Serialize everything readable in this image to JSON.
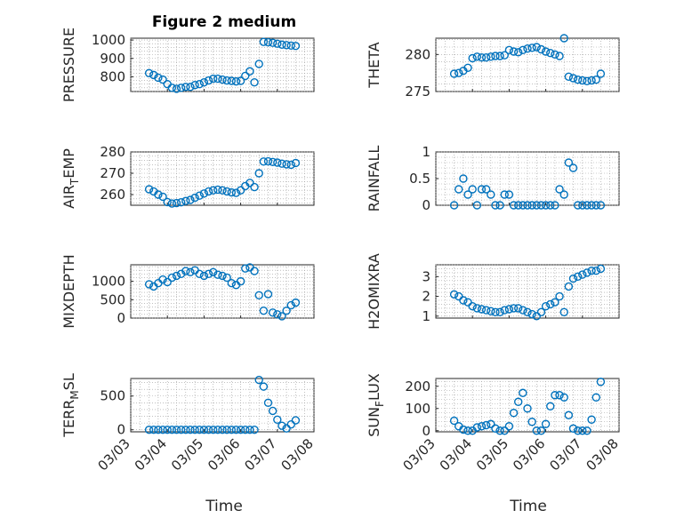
{
  "figure": {
    "title": "Figure 2 medium",
    "xlabel": "Time",
    "marker_color": "#0072BD",
    "date_ticks": [
      "03/03",
      "03/04",
      "03/05",
      "03/06",
      "03/07",
      "03/08"
    ]
  },
  "chart_data": [
    {
      "type": "scatter",
      "name": "PRESSURE",
      "ylabel": "PRESSURE",
      "ylabel_sub": "",
      "ylim": [
        720,
        1010
      ],
      "yticks": [
        800,
        900,
        1000
      ],
      "title": "Figure 2 medium",
      "x": [
        "03/03 12:00",
        "03/03 15:00",
        "03/03 18:00",
        "03/03 21:00",
        "03/04 00:00",
        "03/04 03:00",
        "03/04 06:00",
        "03/04 09:00",
        "03/04 12:00",
        "03/04 15:00",
        "03/04 18:00",
        "03/04 21:00",
        "03/05 00:00",
        "03/05 03:00",
        "03/05 06:00",
        "03/05 09:00",
        "03/05 12:00",
        "03/05 15:00",
        "03/05 18:00",
        "03/05 21:00",
        "03/06 00:00",
        "03/06 03:00",
        "03/06 06:00",
        "03/06 09:00",
        "03/06 12:00",
        "03/06 15:00",
        "03/06 18:00",
        "03/06 21:00",
        "03/07 00:00",
        "03/07 03:00",
        "03/07 06:00",
        "03/07 09:00",
        "03/07 12:00"
      ],
      "y": [
        820,
        810,
        795,
        785,
        760,
        740,
        735,
        740,
        745,
        745,
        755,
        760,
        770,
        780,
        790,
        790,
        785,
        780,
        778,
        775,
        778,
        805,
        830,
        770,
        870,
        990,
        988,
        985,
        980,
        975,
        972,
        970,
        968
      ]
    },
    {
      "type": "scatter",
      "name": "THETA",
      "ylabel": "THETA",
      "ylabel_sub": "",
      "ylim": [
        275,
        282.2
      ],
      "yticks": [
        275,
        280
      ],
      "x": [
        "03/03 12:00",
        "03/03 15:00",
        "03/03 18:00",
        "03/03 21:00",
        "03/04 00:00",
        "03/04 03:00",
        "03/04 06:00",
        "03/04 09:00",
        "03/04 12:00",
        "03/04 15:00",
        "03/04 18:00",
        "03/04 21:00",
        "03/05 00:00",
        "03/05 03:00",
        "03/05 06:00",
        "03/05 09:00",
        "03/05 12:00",
        "03/05 15:00",
        "03/05 18:00",
        "03/05 21:00",
        "03/06 00:00",
        "03/06 03:00",
        "03/06 06:00",
        "03/06 09:00",
        "03/06 12:00",
        "03/06 15:00",
        "03/06 18:00",
        "03/06 21:00",
        "03/07 00:00",
        "03/07 03:00",
        "03/07 06:00",
        "03/07 09:00",
        "03/07 12:00"
      ],
      "y": [
        277.4,
        277.5,
        277.8,
        278.2,
        279.5,
        279.7,
        279.6,
        279.6,
        279.7,
        279.8,
        279.8,
        279.9,
        280.6,
        280.4,
        280.3,
        280.6,
        280.8,
        280.9,
        281.0,
        280.7,
        280.4,
        280.2,
        280.0,
        279.8,
        282.2,
        277.0,
        276.8,
        276.6,
        276.5,
        276.4,
        276.5,
        276.6,
        277.4
      ]
    },
    {
      "type": "scatter",
      "name": "AIR_TEMP",
      "ylabel": "AIR",
      "ylabel_sub": "T",
      "ylabel_after": "EMP",
      "ylim": [
        255,
        280
      ],
      "yticks": [
        260,
        270,
        280
      ],
      "x": [
        "03/03 12:00",
        "03/03 15:00",
        "03/03 18:00",
        "03/03 21:00",
        "03/04 00:00",
        "03/04 03:00",
        "03/04 06:00",
        "03/04 09:00",
        "03/04 12:00",
        "03/04 15:00",
        "03/04 18:00",
        "03/04 21:00",
        "03/05 00:00",
        "03/05 03:00",
        "03/05 06:00",
        "03/05 09:00",
        "03/05 12:00",
        "03/05 15:00",
        "03/05 18:00",
        "03/05 21:00",
        "03/06 00:00",
        "03/06 03:00",
        "03/06 06:00",
        "03/06 09:00",
        "03/06 12:00",
        "03/06 15:00",
        "03/06 18:00",
        "03/06 21:00",
        "03/07 00:00",
        "03/07 03:00",
        "03/07 06:00",
        "03/07 09:00",
        "03/07 12:00"
      ],
      "y": [
        262.5,
        261.5,
        260.0,
        259.0,
        256.5,
        255.8,
        256.0,
        256.4,
        257.0,
        257.5,
        258.5,
        259.5,
        260.5,
        261.5,
        262.0,
        262.3,
        262.0,
        261.5,
        261.0,
        260.8,
        262.0,
        264.0,
        265.5,
        263.5,
        270.0,
        275.5,
        275.6,
        275.3,
        275.0,
        274.5,
        274.2,
        274.0,
        274.8
      ]
    },
    {
      "type": "scatter",
      "name": "RAINFALL",
      "ylabel": "RAINFALL",
      "ylabel_sub": "",
      "ylim": [
        0,
        1
      ],
      "yticks": [
        0,
        0.5,
        1
      ],
      "x": [
        "03/03 12:00",
        "03/03 15:00",
        "03/03 18:00",
        "03/03 21:00",
        "03/04 00:00",
        "03/04 03:00",
        "03/04 06:00",
        "03/04 09:00",
        "03/04 12:00",
        "03/04 15:00",
        "03/04 18:00",
        "03/04 21:00",
        "03/05 00:00",
        "03/05 03:00",
        "03/05 06:00",
        "03/05 09:00",
        "03/05 12:00",
        "03/05 15:00",
        "03/05 18:00",
        "03/05 21:00",
        "03/06 00:00",
        "03/06 03:00",
        "03/06 06:00",
        "03/06 09:00",
        "03/06 12:00",
        "03/06 15:00",
        "03/06 18:00",
        "03/06 21:00",
        "03/07 00:00",
        "03/07 03:00",
        "03/07 06:00",
        "03/07 09:00",
        "03/07 12:00"
      ],
      "y": [
        0,
        0.3,
        0.5,
        0.2,
        0.3,
        0,
        0.3,
        0.3,
        0.2,
        0,
        0,
        0.2,
        0.2,
        0,
        0,
        0,
        0,
        0,
        0,
        0,
        0,
        0,
        0,
        0.3,
        0.2,
        0.8,
        0.7,
        0,
        0,
        0,
        0,
        0,
        0
      ]
    },
    {
      "type": "scatter",
      "name": "MIXDEPTH",
      "ylabel": "MIXDEPTH",
      "ylabel_sub": "",
      "ylim": [
        0,
        1450
      ],
      "yticks": [
        0,
        500,
        1000
      ],
      "x": [
        "03/03 12:00",
        "03/03 15:00",
        "03/03 18:00",
        "03/03 21:00",
        "03/04 00:00",
        "03/04 03:00",
        "03/04 06:00",
        "03/04 09:00",
        "03/04 12:00",
        "03/04 15:00",
        "03/04 18:00",
        "03/04 21:00",
        "03/05 00:00",
        "03/05 03:00",
        "03/05 06:00",
        "03/05 09:00",
        "03/05 12:00",
        "03/05 15:00",
        "03/05 18:00",
        "03/05 21:00",
        "03/06 00:00",
        "03/06 03:00",
        "03/06 06:00",
        "03/06 09:00",
        "03/06 12:00",
        "03/06 15:00",
        "03/06 18:00",
        "03/06 21:00",
        "03/07 00:00",
        "03/07 03:00",
        "03/07 06:00",
        "03/07 09:00",
        "03/07 12:00"
      ],
      "y": [
        920,
        860,
        950,
        1050,
        980,
        1100,
        1150,
        1200,
        1280,
        1250,
        1300,
        1200,
        1150,
        1200,
        1250,
        1180,
        1150,
        1100,
        950,
        900,
        1000,
        1350,
        1380,
        1280,
        620,
        200,
        650,
        150,
        100,
        50,
        200,
        350,
        420
      ]
    },
    {
      "type": "scatter",
      "name": "H2OMIXRA",
      "ylabel": "H2OMIXRA",
      "ylabel_sub": "",
      "ylim": [
        0.9,
        3.6
      ],
      "yticks": [
        1,
        2,
        3
      ],
      "x": [
        "03/03 12:00",
        "03/03 15:00",
        "03/03 18:00",
        "03/03 21:00",
        "03/04 00:00",
        "03/04 03:00",
        "03/04 06:00",
        "03/04 09:00",
        "03/04 12:00",
        "03/04 15:00",
        "03/04 18:00",
        "03/04 21:00",
        "03/05 00:00",
        "03/05 03:00",
        "03/05 06:00",
        "03/05 09:00",
        "03/05 12:00",
        "03/05 15:00",
        "03/05 18:00",
        "03/05 21:00",
        "03/06 00:00",
        "03/06 03:00",
        "03/06 06:00",
        "03/06 09:00",
        "03/06 12:00",
        "03/06 15:00",
        "03/06 18:00",
        "03/06 21:00",
        "03/07 00:00",
        "03/07 03:00",
        "03/07 06:00",
        "03/07 09:00",
        "03/07 12:00"
      ],
      "y": [
        2.1,
        2.0,
        1.8,
        1.7,
        1.5,
        1.4,
        1.35,
        1.3,
        1.25,
        1.2,
        1.2,
        1.3,
        1.35,
        1.4,
        1.4,
        1.3,
        1.2,
        1.1,
        1.0,
        1.2,
        1.5,
        1.6,
        1.7,
        2.0,
        1.2,
        2.5,
        2.9,
        3.0,
        3.1,
        3.2,
        3.3,
        3.3,
        3.4
      ]
    },
    {
      "type": "scatter",
      "name": "TERR_MSL",
      "ylabel": "TERR",
      "ylabel_sub": "M",
      "ylabel_after": "SL",
      "ylim": [
        -30,
        760
      ],
      "yticks": [
        0,
        500
      ],
      "x": [
        "03/03 12:00",
        "03/03 15:00",
        "03/03 18:00",
        "03/03 21:00",
        "03/04 00:00",
        "03/04 03:00",
        "03/04 06:00",
        "03/04 09:00",
        "03/04 12:00",
        "03/04 15:00",
        "03/04 18:00",
        "03/04 21:00",
        "03/05 00:00",
        "03/05 03:00",
        "03/05 06:00",
        "03/05 09:00",
        "03/05 12:00",
        "03/05 15:00",
        "03/05 18:00",
        "03/05 21:00",
        "03/06 00:00",
        "03/06 03:00",
        "03/06 06:00",
        "03/06 09:00",
        "03/06 12:00",
        "03/06 15:00",
        "03/06 18:00",
        "03/06 21:00",
        "03/07 00:00",
        "03/07 03:00",
        "03/07 06:00",
        "03/07 09:00",
        "03/07 12:00"
      ],
      "y": [
        0,
        0,
        0,
        0,
        0,
        0,
        0,
        0,
        0,
        0,
        0,
        0,
        0,
        0,
        0,
        0,
        0,
        0,
        0,
        0,
        0,
        0,
        0,
        0,
        740,
        640,
        400,
        280,
        150,
        60,
        20,
        80,
        140
      ]
    },
    {
      "type": "scatter",
      "name": "SUN_FLUX",
      "ylabel": "SUN",
      "ylabel_sub": "F",
      "ylabel_after": "LUX",
      "ylim": [
        -5,
        235
      ],
      "yticks": [
        0,
        100,
        200
      ],
      "x": [
        "03/03 12:00",
        "03/03 15:00",
        "03/03 18:00",
        "03/03 21:00",
        "03/04 00:00",
        "03/04 03:00",
        "03/04 06:00",
        "03/04 09:00",
        "03/04 12:00",
        "03/04 15:00",
        "03/04 18:00",
        "03/04 21:00",
        "03/05 00:00",
        "03/05 03:00",
        "03/05 06:00",
        "03/05 09:00",
        "03/05 12:00",
        "03/05 15:00",
        "03/05 18:00",
        "03/05 21:00",
        "03/06 00:00",
        "03/06 03:00",
        "03/06 06:00",
        "03/06 09:00",
        "03/06 12:00",
        "03/06 15:00",
        "03/06 18:00",
        "03/06 21:00",
        "03/07 00:00",
        "03/07 03:00",
        "03/07 06:00",
        "03/07 09:00",
        "03/07 12:00"
      ],
      "y": [
        45,
        20,
        5,
        0,
        0,
        15,
        20,
        25,
        30,
        10,
        0,
        0,
        20,
        80,
        130,
        170,
        100,
        40,
        0,
        0,
        30,
        110,
        160,
        160,
        150,
        70,
        10,
        0,
        0,
        0,
        50,
        150,
        220
      ]
    }
  ]
}
